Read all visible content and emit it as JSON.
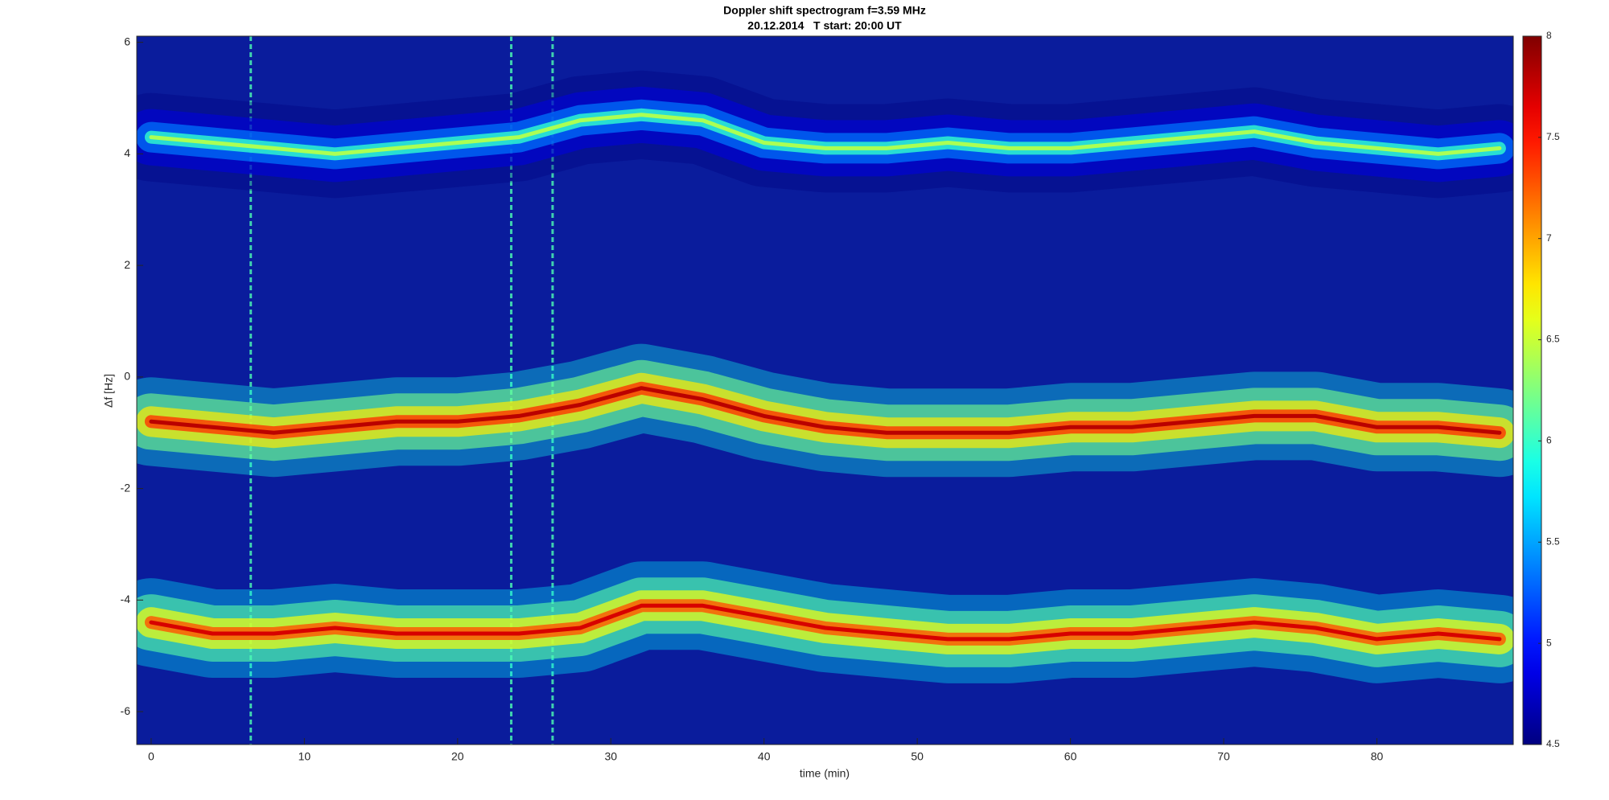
{
  "chart_data": {
    "type": "spectrogram",
    "title": "Doppler shift spectrogram f=3.59 MHz",
    "subtitle": "20.12.2014   T start: 20:00 UT",
    "xlabel": "time (min)",
    "ylabel": "Δf [Hz]",
    "x": [
      0,
      4,
      8,
      12,
      16,
      20,
      24,
      28,
      32,
      36,
      40,
      44,
      48,
      52,
      56,
      60,
      64,
      68,
      72,
      76,
      80,
      84,
      88
    ],
    "series": [
      {
        "level": 6.4,
        "values": [
          4.3,
          4.2,
          4.1,
          4.0,
          4.1,
          4.2,
          4.3,
          4.6,
          4.7,
          4.6,
          4.2,
          4.1,
          4.1,
          4.2,
          4.1,
          4.1,
          4.2,
          4.3,
          4.4,
          4.2,
          4.1,
          4.0,
          4.1
        ]
      },
      {
        "level": 7.8,
        "values": [
          -0.8,
          -0.9,
          -1.0,
          -0.9,
          -0.8,
          -0.8,
          -0.7,
          -0.5,
          -0.2,
          -0.4,
          -0.7,
          -0.9,
          -1.0,
          -1.0,
          -1.0,
          -0.9,
          -0.9,
          -0.8,
          -0.7,
          -0.7,
          -0.9,
          -0.9,
          -1.0
        ]
      },
      {
        "level": 7.7,
        "values": [
          -4.4,
          -4.6,
          -4.6,
          -4.5,
          -4.6,
          -4.6,
          -4.6,
          -4.5,
          -4.1,
          -4.1,
          -4.3,
          -4.5,
          -4.6,
          -4.7,
          -4.7,
          -4.6,
          -4.6,
          -4.5,
          -4.4,
          -4.5,
          -4.7,
          -4.6,
          -4.7
        ]
      }
    ],
    "streaks": [
      6.5,
      23.5,
      26.2
    ],
    "xlim": [
      -0.94,
      88.9
    ],
    "ylim": [
      -6.59,
      6.11
    ],
    "xticks": [
      0,
      10,
      20,
      30,
      40,
      50,
      60,
      70,
      80
    ],
    "yticks": [
      -6,
      -4,
      -2,
      0,
      2,
      4,
      6
    ],
    "clim": [
      4.5,
      8
    ],
    "cticks": [
      4.5,
      5,
      5.5,
      6,
      6.5,
      7,
      7.5,
      8
    ],
    "colormap": "jet"
  }
}
